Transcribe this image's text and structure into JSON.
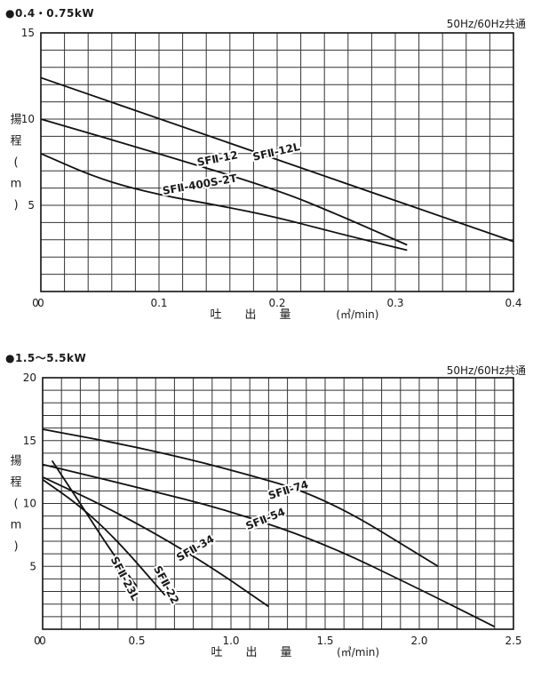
{
  "charts": [
    {
      "heading": "●0.4・0.75kW",
      "frequency_note": "50Hz/60Hz共通",
      "xlabel": "吐　　出　　量",
      "xunit": "(㎥/min)",
      "ylabel": [
        "揚",
        "程",
        "(",
        "m",
        ")"
      ]
    },
    {
      "heading": "●1.5〜5.5kW",
      "frequency_note": "50Hz/60Hz共通",
      "xlabel": "吐　　出　　量",
      "xunit": "(㎥/min)",
      "ylabel": [
        "揚",
        "程",
        "(",
        "m",
        ")"
      ]
    }
  ],
  "chart_data": [
    {
      "type": "line",
      "xlabel": "吐出量 (㎥/min)",
      "ylabel": "揚程 (m)",
      "xlim": [
        0,
        0.4
      ],
      "ylim": [
        0,
        15
      ],
      "xticks": [
        "0",
        "0.1",
        "0.2",
        "0.3",
        "0.4"
      ],
      "yticks": [
        "5",
        "10",
        "15"
      ],
      "grid": true,
      "series": [
        {
          "name": "SFⅡ-12L",
          "x": [
            0,
            0.4
          ],
          "y": [
            12.4,
            2.9
          ]
        },
        {
          "name": "SFⅡ-12",
          "x": [
            0,
            0.1,
            0.2,
            0.25,
            0.31
          ],
          "y": [
            10.0,
            8.0,
            5.9,
            4.5,
            2.7
          ]
        },
        {
          "name": "SFⅡ-400S-2T",
          "x": [
            0,
            0.05,
            0.1,
            0.15,
            0.2,
            0.25,
            0.31
          ],
          "y": [
            8.0,
            6.5,
            5.6,
            5.0,
            4.3,
            3.4,
            2.4
          ]
        }
      ]
    },
    {
      "type": "line",
      "xlabel": "吐出量 (㎥/min)",
      "ylabel": "揚程 (m)",
      "xlim": [
        0,
        2.5
      ],
      "ylim": [
        0,
        20
      ],
      "xticks": [
        "0",
        "0.5",
        "1.0",
        "1.5",
        "2.0",
        "2.5"
      ],
      "yticks": [
        "5",
        "10",
        "15",
        "20"
      ],
      "grid": true,
      "series": [
        {
          "name": "SFⅡ-74",
          "x": [
            0,
            0.5,
            1.0,
            1.5,
            2.1
          ],
          "y": [
            15.9,
            14.5,
            12.7,
            10.5,
            5.0
          ]
        },
        {
          "name": "SFⅡ-54",
          "x": [
            0,
            0.5,
            1.0,
            1.5,
            2.0,
            2.4
          ],
          "y": [
            13.1,
            11.3,
            9.4,
            6.8,
            3.2,
            0.2
          ]
        },
        {
          "name": "SFⅡ-34",
          "x": [
            0,
            0.3,
            0.6,
            0.9,
            1.2
          ],
          "y": [
            12.1,
            10.0,
            7.6,
            4.9,
            1.8
          ]
        },
        {
          "name": "SFⅡ-23L/SFⅡ-22",
          "x": [
            0,
            0.2,
            0.4,
            0.65
          ],
          "y": [
            11.9,
            9.8,
            7.0,
            2.7
          ]
        },
        {
          "name": "SFⅡ-23/SFⅡ-22L",
          "x": [
            0.05,
            0.2,
            0.35,
            0.5
          ],
          "y": [
            13.4,
            10.0,
            6.5,
            3.4
          ]
        }
      ]
    }
  ],
  "curve_labels": [
    {
      "chart": 0,
      "series": 0,
      "text": "SFⅡ-12L",
      "x": 0.2,
      "y": 7.9,
      "angle": -13
    },
    {
      "chart": 0,
      "series": 1,
      "text": "SFⅡ-12",
      "x": 0.15,
      "y": 7.5,
      "angle": -11
    },
    {
      "chart": 0,
      "series": 2,
      "text": "SFⅡ-400S-2T",
      "x": 0.135,
      "y": 6.0,
      "angle": -10
    },
    {
      "chart": 1,
      "series": 0,
      "text": "SFⅡ-74",
      "x": 1.31,
      "y": 10.8,
      "angle": -17
    },
    {
      "chart": 1,
      "series": 1,
      "text": "SFⅡ-54",
      "x": 1.19,
      "y": 8.5,
      "angle": -22
    },
    {
      "chart": 1,
      "series": 2,
      "text": "SFⅡ-34",
      "x": 0.82,
      "y": 6.2,
      "angle": -30
    },
    {
      "chart": 1,
      "series": 3,
      "text": "SFⅡ-23L",
      "x": 0.42,
      "y": 3.9,
      "angle": 62
    },
    {
      "chart": 1,
      "series": 4,
      "text": "SFⅡ-22",
      "x": 0.64,
      "y": 3.4,
      "angle": 62
    }
  ]
}
